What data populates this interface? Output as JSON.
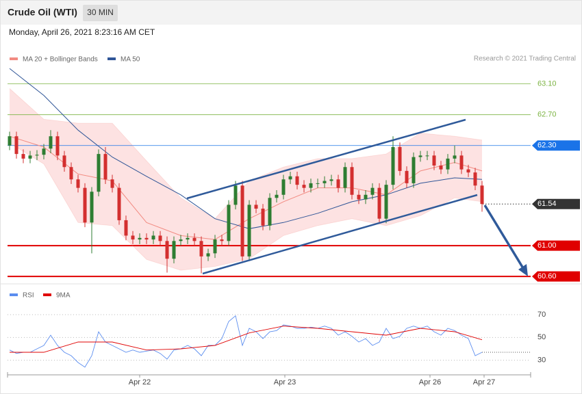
{
  "header": {
    "title": "Crude Oil (WTI)",
    "timeframe": "30 MIN",
    "date": "Monday, April 26, 2021 8:23:16 AM CET"
  },
  "chart_data": [
    {
      "type": "candlestick",
      "source": "Research © 2021 Trading Central",
      "up_color": "#2e7d32",
      "down_color": "#d32f2f",
      "xlim": [
        0,
        69
      ],
      "ylim": [
        60.53,
        63.39
      ],
      "candles": [
        [
          62.3,
          62.48,
          62.24,
          62.42
        ],
        [
          62.42,
          62.48,
          62.13,
          62.19
        ],
        [
          62.19,
          62.25,
          62.07,
          62.13
        ],
        [
          62.13,
          62.23,
          62.07,
          62.17
        ],
        [
          62.17,
          62.24,
          62.11,
          62.18
        ],
        [
          62.18,
          62.32,
          62.12,
          62.26
        ],
        [
          62.26,
          62.5,
          62.2,
          62.42
        ],
        [
          62.42,
          62.48,
          62.11,
          62.17
        ],
        [
          62.17,
          62.23,
          61.96,
          62.02
        ],
        [
          62.02,
          62.08,
          61.8,
          61.86
        ],
        [
          61.86,
          61.92,
          61.69,
          61.75
        ],
        [
          61.75,
          61.81,
          61.24,
          61.3
        ],
        [
          61.3,
          61.76,
          60.9,
          61.7
        ],
        [
          61.7,
          62.25,
          61.64,
          62.19
        ],
        [
          62.19,
          62.28,
          61.8,
          61.86
        ],
        [
          61.86,
          61.92,
          61.69,
          61.75
        ],
        [
          61.75,
          61.81,
          61.27,
          61.33
        ],
        [
          61.33,
          61.39,
          61.07,
          61.13
        ],
        [
          61.13,
          61.19,
          61.02,
          61.08
        ],
        [
          61.08,
          61.16,
          61.02,
          61.1
        ],
        [
          61.1,
          61.16,
          61.02,
          61.08
        ],
        [
          61.08,
          61.19,
          61.02,
          61.13
        ],
        [
          61.13,
          61.19,
          61.0,
          61.06
        ],
        [
          61.06,
          61.12,
          60.65,
          60.83
        ],
        [
          60.83,
          61.12,
          60.77,
          61.06
        ],
        [
          61.06,
          61.14,
          61.0,
          61.08
        ],
        [
          61.08,
          61.16,
          61.02,
          61.1
        ],
        [
          61.1,
          61.16,
          61.0,
          61.06
        ],
        [
          61.06,
          61.12,
          60.64,
          60.86
        ],
        [
          60.86,
          60.96,
          60.8,
          60.9
        ],
        [
          60.9,
          61.14,
          60.84,
          61.08
        ],
        [
          61.08,
          61.14,
          61.0,
          61.06
        ],
        [
          61.06,
          61.59,
          61.0,
          61.53
        ],
        [
          61.53,
          61.84,
          61.47,
          61.78
        ],
        [
          61.78,
          61.84,
          60.8,
          60.86
        ],
        [
          60.86,
          61.59,
          60.8,
          61.53
        ],
        [
          61.53,
          61.59,
          61.42,
          61.48
        ],
        [
          61.48,
          61.54,
          61.2,
          61.26
        ],
        [
          61.26,
          61.68,
          61.2,
          61.62
        ],
        [
          61.62,
          61.72,
          61.56,
          61.66
        ],
        [
          61.66,
          61.92,
          61.6,
          61.86
        ],
        [
          61.86,
          61.96,
          61.8,
          61.9
        ],
        [
          61.9,
          61.96,
          61.73,
          61.79
        ],
        [
          61.79,
          61.85,
          61.69,
          61.75
        ],
        [
          61.75,
          61.87,
          61.69,
          61.81
        ],
        [
          61.81,
          61.87,
          61.75,
          61.81
        ],
        [
          61.81,
          61.9,
          61.75,
          61.84
        ],
        [
          61.84,
          61.92,
          61.78,
          61.86
        ],
        [
          61.86,
          61.92,
          61.69,
          61.75
        ],
        [
          61.75,
          62.08,
          61.69,
          62.02
        ],
        [
          62.02,
          62.08,
          61.6,
          61.66
        ],
        [
          61.66,
          61.72,
          61.54,
          61.6
        ],
        [
          61.6,
          61.72,
          61.54,
          61.66
        ],
        [
          61.66,
          61.81,
          61.6,
          61.75
        ],
        [
          61.75,
          61.81,
          61.29,
          61.35
        ],
        [
          61.35,
          61.85,
          61.29,
          61.79
        ],
        [
          61.79,
          62.42,
          61.73,
          62.28
        ],
        [
          62.28,
          62.34,
          61.91,
          61.97
        ],
        [
          61.97,
          62.03,
          61.75,
          61.81
        ],
        [
          61.81,
          62.21,
          61.75,
          62.15
        ],
        [
          62.15,
          62.23,
          62.09,
          62.17
        ],
        [
          62.17,
          62.23,
          62.11,
          62.17
        ],
        [
          62.17,
          62.23,
          61.98,
          62.04
        ],
        [
          62.04,
          62.1,
          61.93,
          61.99
        ],
        [
          61.99,
          62.19,
          61.93,
          62.13
        ],
        [
          62.13,
          62.3,
          62.07,
          62.17
        ],
        [
          62.17,
          62.23,
          61.93,
          61.99
        ],
        [
          61.99,
          62.05,
          61.89,
          61.95
        ],
        [
          61.95,
          62.01,
          61.72,
          61.78
        ],
        [
          61.78,
          61.84,
          61.44,
          61.54
        ]
      ],
      "series": [
        {
          "name": "MA 20 + Bollinger Bands",
          "color": "#f28b82",
          "band_color": "#fde2e2",
          "x": [
            0,
            5,
            10,
            15,
            20,
            25,
            30,
            35,
            40,
            45,
            50,
            55,
            60,
            65,
            69
          ],
          "values": [
            62.42,
            62.28,
            61.93,
            61.84,
            61.3,
            61.13,
            61.08,
            61.35,
            61.57,
            61.75,
            61.75,
            61.66,
            61.97,
            62.08,
            61.97
          ],
          "upper": [
            63.04,
            62.64,
            62.59,
            62.59,
            62.1,
            61.62,
            61.35,
            61.84,
            62.02,
            62.13,
            62.13,
            62.19,
            62.46,
            62.42,
            62.37
          ],
          "lower": [
            62.33,
            62.06,
            61.3,
            61.26,
            60.82,
            60.68,
            60.73,
            60.83,
            61.13,
            61.26,
            61.35,
            61.26,
            61.39,
            61.62,
            61.57
          ]
        },
        {
          "name": "MA 50",
          "color": "#2f5597",
          "x": [
            0,
            5,
            10,
            15,
            20,
            25,
            30,
            35,
            40,
            45,
            50,
            55,
            60,
            65,
            69
          ],
          "values": [
            63.3,
            62.95,
            62.5,
            62.15,
            61.9,
            61.66,
            61.35,
            61.22,
            61.3,
            61.42,
            61.57,
            61.66,
            61.81,
            61.88,
            61.86
          ]
        }
      ],
      "levels": [
        {
          "value": 63.1,
          "label": "63.10",
          "color": "#7cb342",
          "style": "solid",
          "line_width": 0.8,
          "tag": false
        },
        {
          "value": 62.7,
          "label": "62.70",
          "color": "#7cb342",
          "style": "solid",
          "line_width": 0.8,
          "tag": false
        },
        {
          "value": 62.3,
          "label": "62.30",
          "color": "#1a73e8",
          "style": "solid",
          "line_width": 0.8,
          "tag": true
        },
        {
          "value": 61.54,
          "label": "61.54",
          "color": "#333333",
          "style": "dotted",
          "line_width": 1,
          "tag": true
        },
        {
          "value": 61,
          "label": "61.00",
          "color": "#e00000",
          "style": "solid",
          "line_width": 2,
          "tag": true
        },
        {
          "value": 60.6,
          "label": "60.60",
          "color": "#e00000",
          "style": "solid",
          "line_width": 2,
          "tag": true
        }
      ]
    },
    {
      "type": "line",
      "xlim": [
        0,
        69
      ],
      "ylim": [
        19,
        94
      ],
      "yticks": [
        30,
        50,
        70
      ],
      "xticks": [
        {
          "value": 19,
          "label": "Apr 22"
        },
        {
          "value": 40.2,
          "label": "Apr 23"
        },
        {
          "value": 61.4,
          "label": "Apr 26"
        },
        {
          "value": 69.3,
          "label": "Apr 27"
        }
      ],
      "series": [
        {
          "name": "RSI",
          "color": "#5b8def",
          "values": [
            39,
            36,
            37,
            37,
            40,
            43,
            52,
            43,
            37,
            34,
            28,
            24,
            34,
            55,
            46,
            43,
            40,
            37,
            39,
            37,
            38,
            39,
            36,
            31,
            39,
            40,
            43,
            40,
            34,
            43,
            43,
            49,
            64,
            69,
            43,
            58,
            55,
            49,
            55,
            56,
            61,
            60,
            58,
            58,
            59,
            58,
            60,
            58,
            52,
            55,
            51,
            46,
            49,
            43,
            46,
            58,
            49,
            51,
            58,
            60,
            58,
            60,
            55,
            52,
            58,
            56,
            52,
            49,
            34,
            37
          ]
        },
        {
          "name": "9MA",
          "color": "#e00000",
          "x": [
            0,
            5,
            10,
            15,
            20,
            25,
            30,
            35,
            40,
            45,
            50,
            55,
            60,
            65,
            69
          ],
          "values": [
            37,
            37,
            46,
            46,
            39,
            40,
            43,
            54,
            60,
            58,
            55,
            52,
            58,
            55,
            48
          ]
        }
      ]
    }
  ]
}
